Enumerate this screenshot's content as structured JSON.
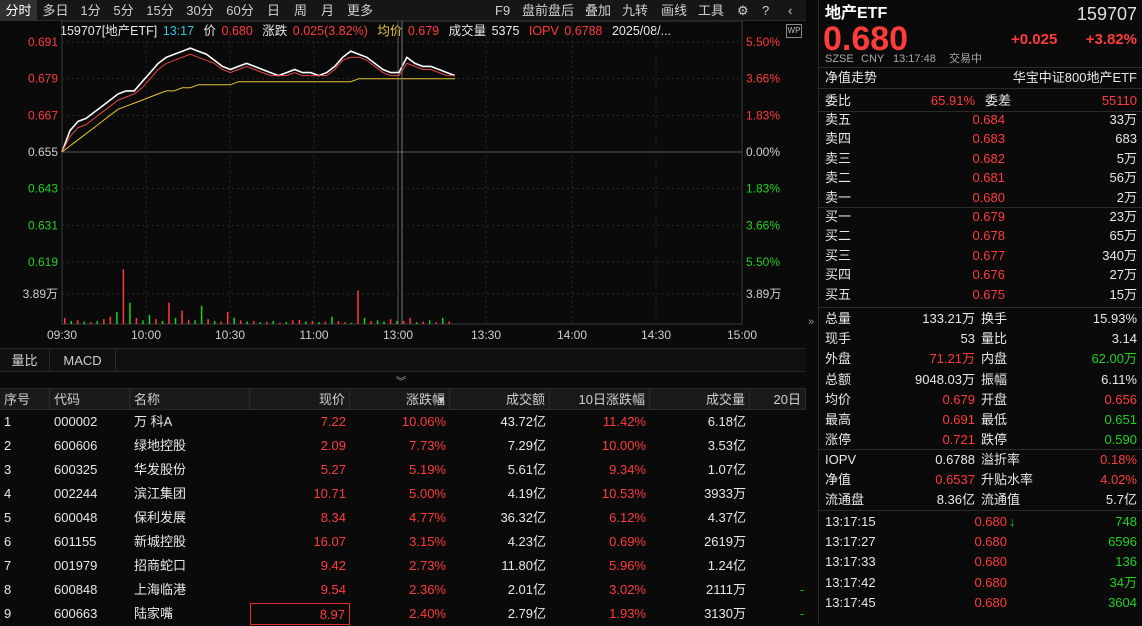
{
  "periods": [
    "分时",
    "多日",
    "1分",
    "5分",
    "15分",
    "30分",
    "60分",
    "日",
    "周",
    "月",
    "更多"
  ],
  "active_period": "分时",
  "tools": [
    "F9",
    "盘前盘后",
    "叠加",
    "九转",
    "画线",
    "工具"
  ],
  "info": {
    "code_name": "159707[地产ETF]",
    "time": "13:17",
    "price_label": "价",
    "price": "0.680",
    "chg_label": "涨跌",
    "chg": "0.025(3.82%)",
    "avg_label": "均价",
    "avg": "0.679",
    "vol_label": "成交量",
    "vol": "5375",
    "iopv_label": "IOPV",
    "iopv": "0.6788",
    "date": "2025/08/..."
  },
  "chart_data": {
    "type": "line",
    "y_left_ticks": [
      "0.691",
      "0.679",
      "0.667",
      "0.655",
      "0.643",
      "0.631",
      "0.619"
    ],
    "y_right_ticks": [
      "5.50%",
      "3.66%",
      "1.83%",
      "0.00%",
      "1.83%",
      "3.66%",
      "5.50%"
    ],
    "vol_tick": "3.89万",
    "x_ticks": [
      "09:30",
      "10:00",
      "10:30",
      "11:00",
      "13:00",
      "13:30",
      "14:00",
      "14:30",
      "15:00"
    ],
    "ylim": [
      0.619,
      0.691
    ],
    "series": [
      {
        "color": "#ffffff",
        "values": [
          0.655,
          0.662,
          0.665,
          0.666,
          0.668,
          0.67,
          0.672,
          0.674,
          0.675,
          0.675,
          0.678,
          0.681,
          0.684,
          0.686,
          0.687,
          0.688,
          0.689,
          0.688,
          0.687,
          0.685,
          0.683,
          0.682,
          0.683,
          0.684,
          0.683,
          0.682,
          0.681,
          0.68,
          0.681,
          0.682,
          0.681,
          0.681,
          0.68,
          0.681,
          0.683,
          0.686,
          0.688,
          0.687,
          0.686,
          0.684,
          0.682,
          0.681,
          0.681,
          0.686,
          0.684,
          0.683,
          0.683,
          0.682,
          0.681,
          0.68
        ]
      },
      {
        "color": "#e04848",
        "values": [
          0.655,
          0.66,
          0.663,
          0.664,
          0.666,
          0.668,
          0.67,
          0.672,
          0.673,
          0.674,
          0.676,
          0.679,
          0.682,
          0.684,
          0.685,
          0.686,
          0.687,
          0.686,
          0.685,
          0.684,
          0.682,
          0.681,
          0.682,
          0.683,
          0.682,
          0.681,
          0.68,
          0.68,
          0.68,
          0.681,
          0.68,
          0.68,
          0.68,
          0.68,
          0.682,
          0.685,
          0.686,
          0.686,
          0.685,
          0.683,
          0.681,
          0.68,
          0.68,
          0.684,
          0.683,
          0.682,
          0.682,
          0.681,
          0.68,
          0.68
        ]
      },
      {
        "color": "#e8c23a",
        "values": [
          0.655,
          0.657,
          0.659,
          0.661,
          0.663,
          0.665,
          0.667,
          0.669,
          0.67,
          0.671,
          0.672,
          0.673,
          0.674,
          0.675,
          0.675,
          0.676,
          0.676,
          0.677,
          0.677,
          0.677,
          0.677,
          0.677,
          0.678,
          0.678,
          0.678,
          0.678,
          0.678,
          0.678,
          0.678,
          0.678,
          0.678,
          0.678,
          0.678,
          0.678,
          0.678,
          0.678,
          0.678,
          0.679,
          0.679,
          0.679,
          0.679,
          0.679,
          0.679,
          0.679,
          0.679,
          0.679,
          0.679,
          0.679,
          0.679,
          0.679
        ]
      }
    ],
    "volumes": [
      0.1,
      0.05,
      0.06,
      0.04,
      0.03,
      0.05,
      0.08,
      0.12,
      0.2,
      0.9,
      0.35,
      0.1,
      0.06,
      0.15,
      0.08,
      0.05,
      0.35,
      0.1,
      0.22,
      0.07,
      0.06,
      0.3,
      0.08,
      0.05,
      0.04,
      0.2,
      0.1,
      0.06,
      0.04,
      0.05,
      0.03,
      0.04,
      0.05,
      0.02,
      0.03,
      0.06,
      0.07,
      0.04,
      0.05,
      0.03,
      0.04,
      0.12,
      0.05,
      0.03,
      0.02,
      0.55,
      0.1,
      0.05,
      0.06,
      0.04,
      0.08,
      0.05,
      0.05,
      0.1,
      0.03,
      0.04,
      0.06,
      0.03,
      0.1,
      0.04
    ],
    "volume_up": [
      1,
      0,
      1,
      0,
      1,
      0,
      1,
      1,
      0,
      1,
      0,
      1,
      0,
      0,
      1,
      0,
      1,
      0,
      1,
      1,
      0,
      0,
      1,
      0,
      1,
      1,
      0,
      1,
      0,
      1,
      0,
      1,
      0,
      1,
      0,
      1,
      1,
      0,
      1,
      0,
      1,
      0,
      1,
      1,
      0,
      1,
      0,
      1,
      0,
      0,
      1,
      0,
      1,
      1,
      0,
      1,
      0,
      1,
      0,
      1
    ]
  },
  "subtabs": [
    "量比",
    "MACD"
  ],
  "table": {
    "headers": [
      "序号",
      "代码",
      "名称",
      "现价",
      "涨跌幅",
      "成交额",
      "10日涨跌幅",
      "成交量",
      "20日"
    ],
    "rows": [
      {
        "n": "1",
        "code": "000002",
        "name": "万 科A",
        "price": "7.22",
        "pct": "10.06%",
        "amt": "43.72亿",
        "pct10": "11.42%",
        "vol": "6.18亿"
      },
      {
        "n": "2",
        "code": "600606",
        "name": "绿地控股",
        "price": "2.09",
        "pct": "7.73%",
        "amt": "7.29亿",
        "pct10": "10.00%",
        "vol": "3.53亿"
      },
      {
        "n": "3",
        "code": "600325",
        "name": "华发股份",
        "price": "5.27",
        "pct": "5.19%",
        "amt": "5.61亿",
        "pct10": "9.34%",
        "vol": "1.07亿"
      },
      {
        "n": "4",
        "code": "002244",
        "name": "滨江集团",
        "price": "10.71",
        "pct": "5.00%",
        "amt": "4.19亿",
        "pct10": "10.53%",
        "vol": "3933万"
      },
      {
        "n": "5",
        "code": "600048",
        "name": "保利发展",
        "price": "8.34",
        "pct": "4.77%",
        "amt": "36.32亿",
        "pct10": "6.12%",
        "vol": "4.37亿"
      },
      {
        "n": "6",
        "code": "601155",
        "name": "新城控股",
        "price": "16.07",
        "pct": "3.15%",
        "amt": "4.23亿",
        "pct10": "0.69%",
        "vol": "2619万"
      },
      {
        "n": "7",
        "code": "001979",
        "name": "招商蛇口",
        "price": "9.42",
        "pct": "2.73%",
        "amt": "11.80亿",
        "pct10": "5.96%",
        "vol": "1.24亿"
      },
      {
        "n": "8",
        "code": "600848",
        "name": "上海临港",
        "price": "9.54",
        "pct": "2.36%",
        "amt": "2.01亿",
        "pct10": "3.02%",
        "vol": "2111万"
      },
      {
        "n": "9",
        "code": "600663",
        "name": "陆家嘴",
        "price": "8.97",
        "pct": "2.40%",
        "amt": "2.79亿",
        "pct10": "1.93%",
        "vol": "3130万"
      }
    ]
  },
  "quote": {
    "name": "地产ETF",
    "code": "159707",
    "price": "0.680",
    "change": "+0.025",
    "pct": "+3.82%",
    "exchange": "SZSE",
    "currency": "CNY",
    "time": "13:17:48",
    "status": "交易中",
    "nav_trend": "净值走势",
    "index_name": "华宝中证800地产ETF",
    "wb_label": "委比",
    "wb": "65.91%",
    "wc_label": "委差",
    "wc": "55110",
    "asks": [
      {
        "l": "卖五",
        "p": "0.684",
        "v": "33万"
      },
      {
        "l": "卖四",
        "p": "0.683",
        "v": "683"
      },
      {
        "l": "卖三",
        "p": "0.682",
        "v": "5万"
      },
      {
        "l": "卖二",
        "p": "0.681",
        "v": "56万"
      },
      {
        "l": "卖一",
        "p": "0.680",
        "v": "2万"
      }
    ],
    "bids": [
      {
        "l": "买一",
        "p": "0.679",
        "v": "23万"
      },
      {
        "l": "买二",
        "p": "0.678",
        "v": "65万"
      },
      {
        "l": "买三",
        "p": "0.677",
        "v": "340万"
      },
      {
        "l": "买四",
        "p": "0.676",
        "v": "27万"
      },
      {
        "l": "买五",
        "p": "0.675",
        "v": "15万"
      }
    ],
    "stats": [
      {
        "l1": "总量",
        "v1": "133.21万",
        "c1": "white",
        "l2": "换手",
        "v2": "15.93%",
        "c2": "white"
      },
      {
        "l1": "现手",
        "v1": "53",
        "c1": "white",
        "l2": "量比",
        "v2": "3.14",
        "c2": "white"
      },
      {
        "l1": "外盘",
        "v1": "71.21万",
        "c1": "red",
        "l2": "内盘",
        "v2": "62.00万",
        "c2": "green"
      },
      {
        "l1": "总额",
        "v1": "9048.03万",
        "c1": "white",
        "l2": "振幅",
        "v2": "6.11%",
        "c2": "white"
      },
      {
        "l1": "均价",
        "v1": "0.679",
        "c1": "red",
        "l2": "开盘",
        "v2": "0.656",
        "c2": "red"
      },
      {
        "l1": "最高",
        "v1": "0.691",
        "c1": "red",
        "l2": "最低",
        "v2": "0.651",
        "c2": "green"
      },
      {
        "l1": "涨停",
        "v1": "0.721",
        "c1": "red",
        "l2": "跌停",
        "v2": "0.590",
        "c2": "green"
      }
    ],
    "stats2": [
      {
        "l1": "IOPV",
        "v1": "0.6788",
        "c1": "white",
        "l2": "溢折率",
        "v2": "0.18%",
        "c2": "red"
      },
      {
        "l1": "净值",
        "v1": "0.6537",
        "c1": "red",
        "l2": "升贴水率",
        "v2": "4.02%",
        "c2": "red"
      },
      {
        "l1": "流通盘",
        "v1": "8.36亿",
        "c1": "white",
        "l2": "流通值",
        "v2": "5.7亿",
        "c2": "white"
      }
    ],
    "ticks": [
      {
        "t": "13:17:15",
        "p": "0.680",
        "arrow": "↓",
        "v": "748"
      },
      {
        "t": "13:17:27",
        "p": "0.680",
        "arrow": "",
        "v": "6596"
      },
      {
        "t": "13:17:33",
        "p": "0.680",
        "arrow": "",
        "v": "136"
      },
      {
        "t": "13:17:42",
        "p": "0.680",
        "arrow": "",
        "v": "34万"
      },
      {
        "t": "13:17:45",
        "p": "0.680",
        "arrow": "",
        "v": "3604"
      }
    ]
  }
}
